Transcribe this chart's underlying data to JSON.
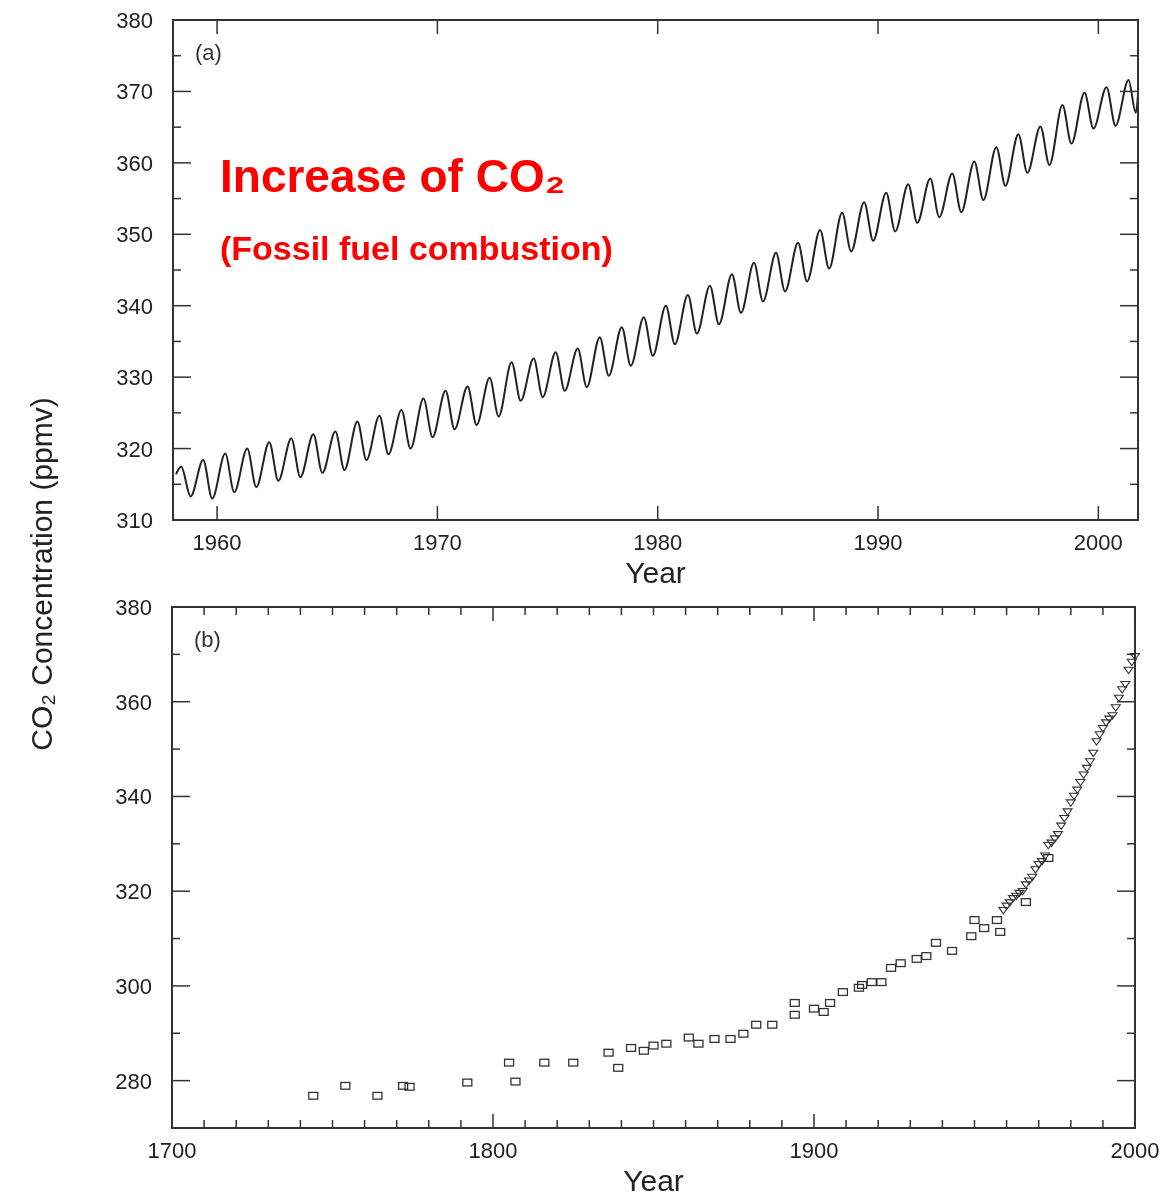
{
  "chart_data": [
    {
      "type": "line",
      "ylabel": "CO₂ Concentration (ppmv)",
      "xlabel": "Year",
      "annotations": [
        "(a)",
        "Increase of CO₂",
        "(Fossil fuel combustion)"
      ],
      "xlim": [
        1958,
        2001.8
      ],
      "ylim": [
        310,
        380
      ],
      "xticks": [
        1960,
        1970,
        1980,
        1990,
        2000
      ],
      "yticks": [
        310,
        {
          "value": 315,
          "label": null
        },
        320,
        {
          "value": 325,
          "label": null
        },
        330,
        {
          "value": 335,
          "label": null
        },
        340,
        {
          "value": 345,
          "label": null
        },
        350,
        {
          "value": 355,
          "label": null
        },
        360,
        {
          "value": 365,
          "label": null
        },
        370,
        {
          "value": 375,
          "label": null
        },
        380
      ],
      "grid": false,
      "marker": "none",
      "line_style": "solid",
      "series": [
        {
          "color": "#222222",
          "x": [
            1958.15,
            1958.37,
            1958.8,
            1959.37,
            1959.78,
            1960.37,
            1960.78,
            1961.37,
            1961.78,
            1962.37,
            1962.78,
            1963.37,
            1963.78,
            1964.37,
            1964.78,
            1965.37,
            1965.78,
            1966.37,
            1966.78,
            1967.37,
            1967.78,
            1968.37,
            1968.78,
            1969.37,
            1969.78,
            1970.37,
            1970.78,
            1971.37,
            1971.78,
            1972.37,
            1972.78,
            1973.37,
            1973.78,
            1974.37,
            1974.78,
            1975.37,
            1975.78,
            1976.37,
            1976.78,
            1977.37,
            1977.78,
            1978.37,
            1978.78,
            1979.37,
            1979.78,
            1980.37,
            1980.78,
            1981.37,
            1981.78,
            1982.37,
            1982.78,
            1983.37,
            1983.78,
            1984.37,
            1984.78,
            1985.37,
            1985.78,
            1986.37,
            1986.78,
            1987.37,
            1987.78,
            1988.37,
            1988.78,
            1989.37,
            1989.78,
            1990.37,
            1990.78,
            1991.37,
            1991.78,
            1992.37,
            1992.78,
            1993.37,
            1993.78,
            1994.37,
            1994.78,
            1995.37,
            1995.78,
            1996.37,
            1996.78,
            1997.37,
            1997.78,
            1998.37,
            1998.78,
            1999.37,
            1999.78,
            2000.37,
            2000.78,
            2001.37,
            2001.7,
            2001.8
          ],
          "values": [
            316.5,
            317.5,
            313.3,
            318.4,
            313.0,
            319.3,
            313.9,
            320.0,
            314.6,
            320.9,
            315.5,
            321.4,
            316.0,
            322.0,
            316.6,
            322.4,
            317.0,
            323.8,
            318.4,
            324.6,
            319.2,
            325.4,
            320.0,
            327.0,
            321.6,
            328.1,
            322.7,
            328.7,
            323.3,
            329.9,
            324.5,
            332.1,
            326.7,
            332.6,
            327.2,
            333.5,
            328.1,
            334.0,
            328.6,
            335.6,
            330.2,
            337.0,
            331.6,
            338.4,
            333.0,
            340.0,
            334.6,
            341.5,
            336.1,
            342.8,
            337.4,
            344.4,
            339.0,
            346.0,
            340.6,
            347.4,
            342.0,
            348.8,
            343.4,
            350.6,
            345.2,
            353.0,
            347.6,
            354.5,
            349.1,
            355.8,
            350.4,
            357.0,
            351.6,
            357.8,
            352.4,
            358.5,
            353.1,
            360.2,
            354.8,
            362.2,
            356.8,
            364.0,
            358.6,
            365.1,
            359.7,
            368.1,
            362.7,
            369.8,
            364.8,
            370.6,
            365.2,
            371.6,
            367.0,
            369.5
          ]
        }
      ]
    },
    {
      "type": "scatter",
      "xlabel": "Year",
      "annotations": [
        "(b)"
      ],
      "xlim": [
        1700,
        2000
      ],
      "ylim": [
        270,
        380
      ],
      "xticks": [
        1700,
        {
          "value": 1710,
          "label": null
        },
        {
          "value": 1720,
          "label": null
        },
        {
          "value": 1730,
          "label": null
        },
        {
          "value": 1740,
          "label": null
        },
        {
          "value": 1750,
          "label": null
        },
        {
          "value": 1760,
          "label": null
        },
        {
          "value": 1770,
          "label": null
        },
        {
          "value": 1780,
          "label": null
        },
        {
          "value": 1790,
          "label": null
        },
        1800,
        {
          "value": 1810,
          "label": null
        },
        {
          "value": 1820,
          "label": null
        },
        {
          "value": 1830,
          "label": null
        },
        {
          "value": 1840,
          "label": null
        },
        {
          "value": 1850,
          "label": null
        },
        {
          "value": 1860,
          "label": null
        },
        {
          "value": 1870,
          "label": null
        },
        {
          "value": 1880,
          "label": null
        },
        {
          "value": 1890,
          "label": null
        },
        1900,
        {
          "value": 1910,
          "label": null
        },
        {
          "value": 1920,
          "label": null
        },
        {
          "value": 1930,
          "label": null
        },
        {
          "value": 1940,
          "label": null
        },
        {
          "value": 1950,
          "label": null
        },
        {
          "value": 1960,
          "label": null
        },
        {
          "value": 1970,
          "label": null
        },
        {
          "value": 1980,
          "label": null
        },
        {
          "value": 1990,
          "label": null
        },
        2000
      ],
      "yticks": [
        {
          "value": 270,
          "label": null
        },
        280,
        {
          "value": 290,
          "label": null
        },
        300,
        {
          "value": 310,
          "label": null
        },
        320,
        {
          "value": 330,
          "label": null
        },
        340,
        {
          "value": 350,
          "label": null
        },
        360,
        {
          "value": 370,
          "label": null
        },
        380
      ],
      "grid": false,
      "series": [
        {
          "color": "#333333",
          "marker": "square",
          "x": [
            1744,
            1754,
            1764,
            1772,
            1774,
            1792,
            1805,
            1807,
            1816,
            1825,
            1836,
            1839,
            1843,
            1847,
            1850,
            1854,
            1861,
            1864,
            1869,
            1874,
            1878,
            1882,
            1887,
            1894,
            1894,
            1900,
            1903,
            1905,
            1909,
            1914,
            1915,
            1918,
            1921,
            1924,
            1927,
            1932,
            1935,
            1938,
            1943,
            1949,
            1950,
            1953,
            1957,
            1958,
            1966,
            1973
          ],
          "values": [
            276.8,
            278.9,
            276.8,
            278.9,
            278.7,
            279.6,
            283.8,
            279.8,
            283.8,
            283.8,
            285.9,
            282.7,
            286.9,
            286.3,
            287.4,
            287.8,
            289.1,
            287.8,
            288.8,
            288.8,
            289.9,
            291.8,
            291.8,
            293.9,
            296.4,
            295.2,
            294.5,
            296.4,
            298.7,
            299.6,
            300.2,
            300.8,
            300.8,
            303.8,
            304.8,
            305.7,
            306.3,
            309.1,
            307.4,
            310.5,
            313.9,
            312.2,
            313.9,
            311.4,
            317.7,
            327.0
          ]
        },
        {
          "color": "#333333",
          "marker": "triangle",
          "x": [
            1959,
            1960,
            1961,
            1962,
            1963,
            1964,
            1965,
            1966,
            1967,
            1968,
            1969,
            1970,
            1971,
            1972,
            1973,
            1974,
            1975,
            1976,
            1977,
            1978,
            1979,
            1980,
            1981,
            1982,
            1983,
            1984,
            1985,
            1986,
            1987,
            1988,
            1989,
            1990,
            1991,
            1992,
            1993,
            1994,
            1995,
            1996,
            1997,
            1998,
            1999,
            2000
          ],
          "values": [
            316.0,
            316.9,
            317.6,
            318.5,
            319.0,
            319.6,
            320.0,
            321.4,
            322.2,
            323.0,
            324.6,
            325.7,
            326.3,
            327.5,
            329.7,
            330.2,
            331.1,
            332.0,
            333.8,
            335.4,
            336.8,
            338.7,
            340.1,
            341.4,
            343.0,
            344.6,
            346.0,
            347.4,
            349.2,
            351.6,
            353.1,
            354.4,
            355.6,
            356.4,
            357.1,
            358.8,
            360.8,
            362.6,
            363.7,
            366.7,
            368.4,
            369.6
          ]
        }
      ]
    }
  ]
}
